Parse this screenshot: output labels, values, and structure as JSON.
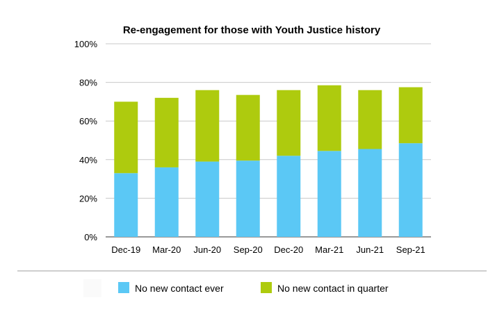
{
  "chart_data": {
    "type": "bar",
    "stacked": true,
    "title": "Re-engagement for those with Youth Justice history",
    "xlabel": "",
    "ylabel": "",
    "categories": [
      "Dec-19",
      "Mar-20",
      "Jun-20",
      "Sep-20",
      "Dec-20",
      "Mar-21",
      "Jun-21",
      "Sep-21"
    ],
    "series": [
      {
        "name": "No new contact ever",
        "color": "#5bc8f5",
        "values": [
          33,
          36,
          39,
          39.5,
          42,
          44.5,
          45.5,
          48.5
        ]
      },
      {
        "name": "No new contact in quarter",
        "color": "#aecb0e",
        "values": [
          37,
          36,
          37,
          34,
          34,
          34,
          30.5,
          29
        ]
      }
    ],
    "ylim": [
      0,
      100
    ],
    "yticks": [
      "0%",
      "20%",
      "40%",
      "60%",
      "80%",
      "100%"
    ],
    "grid": true,
    "legend_position": "bottom"
  }
}
